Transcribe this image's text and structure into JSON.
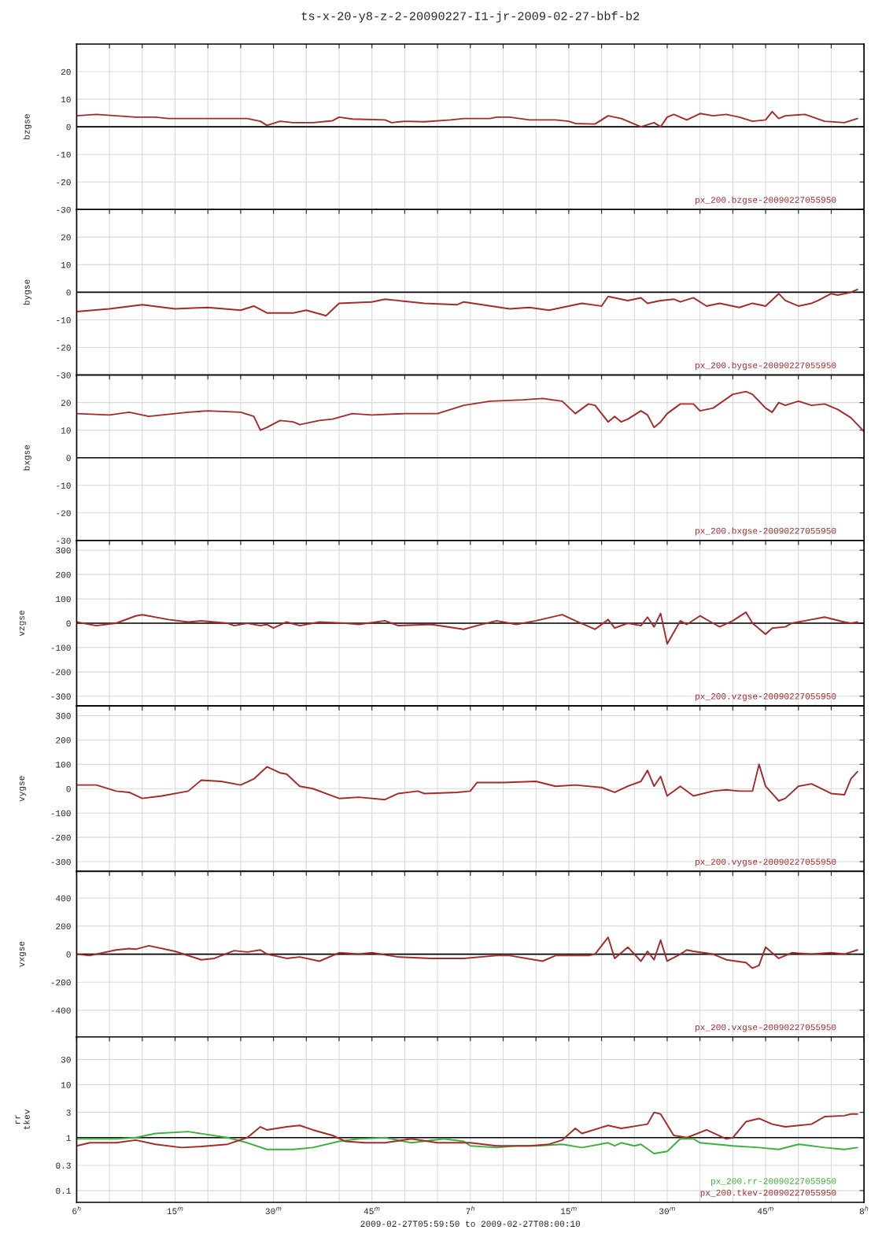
{
  "chart_data": [
    {
      "type": "line",
      "title": "ts-x-20-y8-z-2-20090227-I1-jr-2009-02-27-bbf-b2",
      "ylabel": "bzgse",
      "tick_labels": "y",
      "grid": true,
      "legend": "bottom right",
      "xlim": [
        "2009-02-27T06:00",
        "2009-02-27T08:00"
      ],
      "xticks": [
        {
          "value": "2009-02-27T06:00",
          "label": null
        },
        {
          "value": "2009-02-27T06:05",
          "label": null
        },
        {
          "value": "2009-02-27T06:10",
          "label": null
        },
        {
          "value": "2009-02-27T06:15",
          "label": null
        },
        {
          "value": "2009-02-27T06:20",
          "label": null
        },
        {
          "value": "2009-02-27T06:25",
          "label": null
        },
        {
          "value": "2009-02-27T06:30",
          "label": null
        },
        {
          "value": "2009-02-27T06:35",
          "label": null
        },
        {
          "value": "2009-02-27T06:40",
          "label": null
        },
        {
          "value": "2009-02-27T06:45",
          "label": null
        },
        {
          "value": "2009-02-27T06:50",
          "label": null
        },
        {
          "value": "2009-02-27T06:55",
          "label": null
        },
        {
          "value": "2009-02-27T07:00",
          "label": null
        },
        {
          "value": "2009-02-27T07:05",
          "label": null
        },
        {
          "value": "2009-02-27T07:10",
          "label": null
        },
        {
          "value": "2009-02-27T07:15",
          "label": null
        },
        {
          "value": "2009-02-27T07:20",
          "label": null
        },
        {
          "value": "2009-02-27T07:25",
          "label": null
        },
        {
          "value": "2009-02-27T07:30",
          "label": null
        },
        {
          "value": "2009-02-27T07:35",
          "label": null
        },
        {
          "value": "2009-02-27T07:40",
          "label": null
        },
        {
          "value": "2009-02-27T07:45",
          "label": null
        },
        {
          "value": "2009-02-27T07:50",
          "label": null
        },
        {
          "value": "2009-02-27T07:55",
          "label": null
        },
        {
          "value": "2009-02-27T08:00",
          "label": null
        }
      ],
      "ylim": [
        -30,
        30
      ],
      "yticks": [
        -30,
        -20,
        -10,
        0,
        10,
        20
      ],
      "ref_lines": [
        {
          "axis": "y",
          "value": 0,
          "color": "#000000"
        }
      ],
      "x": [
        "2009-02-27T06:00",
        "2009-02-27T06:03",
        "2009-02-27T06:06",
        "2009-02-27T06:09",
        "2009-02-27T06:12",
        "2009-02-27T06:14",
        "2009-02-27T06:18",
        "2009-02-27T06:23",
        "2009-02-27T06:26",
        "2009-02-27T06:28",
        "2009-02-27T06:29",
        "2009-02-27T06:31",
        "2009-02-27T06:33",
        "2009-02-27T06:36",
        "2009-02-27T06:39",
        "2009-02-27T06:40",
        "2009-02-27T06:42",
        "2009-02-27T06:47",
        "2009-02-27T06:48",
        "2009-02-27T06:50",
        "2009-02-27T06:53",
        "2009-02-27T06:57",
        "2009-02-27T06:59",
        "2009-02-27T07:03",
        "2009-02-27T07:04",
        "2009-02-27T07:06",
        "2009-02-27T07:09",
        "2009-02-27T07:13",
        "2009-02-27T07:15",
        "2009-02-27T07:16",
        "2009-02-27T07:19",
        "2009-02-27T07:21",
        "2009-02-27T07:22",
        "2009-02-27T07:23",
        "2009-02-27T07:25",
        "2009-02-27T07:26",
        "2009-02-27T07:28",
        "2009-02-27T07:29",
        "2009-02-27T07:30",
        "2009-02-27T07:31",
        "2009-02-27T07:33",
        "2009-02-27T07:35",
        "2009-02-27T07:37",
        "2009-02-27T07:39",
        "2009-02-27T07:41",
        "2009-02-27T07:43",
        "2009-02-27T07:45",
        "2009-02-27T07:46",
        "2009-02-27T07:47",
        "2009-02-27T07:48",
        "2009-02-27T07:51",
        "2009-02-27T07:54",
        "2009-02-27T07:57",
        "2009-02-27T07:59"
      ],
      "series": [
        {
          "name": "px_200.bzgse-20090227055950",
          "color": "#a52a2a",
          "values": [
            4,
            4.5,
            4,
            3.5,
            3.5,
            3,
            3,
            3,
            3,
            2,
            0.5,
            2,
            1.5,
            1.5,
            2.2,
            3.5,
            2.8,
            2.5,
            1.5,
            2,
            1.8,
            2.5,
            3,
            3,
            3.5,
            3.5,
            2.5,
            2.5,
            2,
            1.2,
            1,
            4,
            3.5,
            3,
            1,
            0,
            1.5,
            0,
            3.5,
            4.5,
            2.5,
            4.8,
            4,
            4.5,
            3.5,
            2,
            2.5,
            5.5,
            3,
            4,
            4.5,
            2,
            1.5,
            3
          ]
        }
      ]
    },
    {
      "type": "line",
      "ylabel": "bygse",
      "tick_labels": "y",
      "grid": true,
      "legend": "bottom right",
      "xlim": [
        "2009-02-27T06:00",
        "2009-02-27T08:00"
      ],
      "xticks": [
        {
          "value": "2009-02-27T06:00",
          "label": null
        },
        {
          "value": "2009-02-27T06:05",
          "label": null
        },
        {
          "value": "2009-02-27T06:10",
          "label": null
        },
        {
          "value": "2009-02-27T06:15",
          "label": null
        },
        {
          "value": "2009-02-27T06:20",
          "label": null
        },
        {
          "value": "2009-02-27T06:25",
          "label": null
        },
        {
          "value": "2009-02-27T06:30",
          "label": null
        },
        {
          "value": "2009-02-27T06:35",
          "label": null
        },
        {
          "value": "2009-02-27T06:40",
          "label": null
        },
        {
          "value": "2009-02-27T06:45",
          "label": null
        },
        {
          "value": "2009-02-27T06:50",
          "label": null
        },
        {
          "value": "2009-02-27T06:55",
          "label": null
        },
        {
          "value": "2009-02-27T07:00",
          "label": null
        },
        {
          "value": "2009-02-27T07:05",
          "label": null
        },
        {
          "value": "2009-02-27T07:10",
          "label": null
        },
        {
          "value": "2009-02-27T07:15",
          "label": null
        },
        {
          "value": "2009-02-27T07:20",
          "label": null
        },
        {
          "value": "2009-02-27T07:25",
          "label": null
        },
        {
          "value": "2009-02-27T07:30",
          "label": null
        },
        {
          "value": "2009-02-27T07:35",
          "label": null
        },
        {
          "value": "2009-02-27T07:40",
          "label": null
        },
        {
          "value": "2009-02-27T07:45",
          "label": null
        },
        {
          "value": "2009-02-27T07:50",
          "label": null
        },
        {
          "value": "2009-02-27T07:55",
          "label": null
        },
        {
          "value": "2009-02-27T08:00",
          "label": null
        }
      ],
      "ylim": [
        -30,
        30
      ],
      "yticks": [
        -30,
        -20,
        -10,
        0,
        10,
        20
      ],
      "ref_lines": [
        {
          "axis": "y",
          "value": 0,
          "color": "#000000"
        }
      ],
      "x": [
        "2009-02-27T06:00",
        "2009-02-27T06:05",
        "2009-02-27T06:10",
        "2009-02-27T06:15",
        "2009-02-27T06:20",
        "2009-02-27T06:25",
        "2009-02-27T06:27",
        "2009-02-27T06:29",
        "2009-02-27T06:33",
        "2009-02-27T06:35",
        "2009-02-27T06:38",
        "2009-02-27T06:40",
        "2009-02-27T06:45",
        "2009-02-27T06:47",
        "2009-02-27T06:53",
        "2009-02-27T06:58",
        "2009-02-27T06:59",
        "2009-02-27T07:06",
        "2009-02-27T07:09",
        "2009-02-27T07:12",
        "2009-02-27T07:15",
        "2009-02-27T07:17",
        "2009-02-27T07:20",
        "2009-02-27T07:21",
        "2009-02-27T07:22",
        "2009-02-27T07:24",
        "2009-02-27T07:26",
        "2009-02-27T07:27",
        "2009-02-27T07:29",
        "2009-02-27T07:31",
        "2009-02-27T07:32",
        "2009-02-27T07:34",
        "2009-02-27T07:36",
        "2009-02-27T07:38",
        "2009-02-27T07:41",
        "2009-02-27T07:43",
        "2009-02-27T07:45",
        "2009-02-27T07:47",
        "2009-02-27T07:48",
        "2009-02-27T07:50",
        "2009-02-27T07:52",
        "2009-02-27T07:53",
        "2009-02-27T07:55",
        "2009-02-27T07:56",
        "2009-02-27T07:58",
        "2009-02-27T07:59"
      ],
      "series": [
        {
          "name": "px_200.bygse-20090227055950",
          "color": "#a52a2a",
          "values": [
            -7,
            -6,
            -4.5,
            -6,
            -5.5,
            -6.5,
            -5,
            -7.5,
            -7.5,
            -6.5,
            -8.5,
            -4,
            -3.5,
            -2.5,
            -4,
            -4.5,
            -3.5,
            -6,
            -5.5,
            -6.5,
            -5,
            -4,
            -5,
            -1.5,
            -2,
            -3,
            -2,
            -4,
            -3,
            -2.5,
            -3.5,
            -2,
            -5,
            -4,
            -5.5,
            -4,
            -5,
            -0.5,
            -3,
            -5,
            -4,
            -3,
            -0.5,
            -1,
            0,
            1
          ]
        }
      ]
    },
    {
      "type": "line",
      "ylabel": "bxgse",
      "tick_labels": "y",
      "grid": true,
      "legend": "bottom right",
      "xlim": [
        "2009-02-27T06:00",
        "2009-02-27T08:00"
      ],
      "xticks": [
        {
          "value": "2009-02-27T06:00",
          "label": null
        },
        {
          "value": "2009-02-27T06:05",
          "label": null
        },
        {
          "value": "2009-02-27T06:10",
          "label": null
        },
        {
          "value": "2009-02-27T06:15",
          "label": null
        },
        {
          "value": "2009-02-27T06:20",
          "label": null
        },
        {
          "value": "2009-02-27T06:25",
          "label": null
        },
        {
          "value": "2009-02-27T06:30",
          "label": null
        },
        {
          "value": "2009-02-27T06:35",
          "label": null
        },
        {
          "value": "2009-02-27T06:40",
          "label": null
        },
        {
          "value": "2009-02-27T06:45",
          "label": null
        },
        {
          "value": "2009-02-27T06:50",
          "label": null
        },
        {
          "value": "2009-02-27T06:55",
          "label": null
        },
        {
          "value": "2009-02-27T07:00",
          "label": null
        },
        {
          "value": "2009-02-27T07:05",
          "label": null
        },
        {
          "value": "2009-02-27T07:10",
          "label": null
        },
        {
          "value": "2009-02-27T07:15",
          "label": null
        },
        {
          "value": "2009-02-27T07:20",
          "label": null
        },
        {
          "value": "2009-02-27T07:25",
          "label": null
        },
        {
          "value": "2009-02-27T07:30",
          "label": null
        },
        {
          "value": "2009-02-27T07:35",
          "label": null
        },
        {
          "value": "2009-02-27T07:40",
          "label": null
        },
        {
          "value": "2009-02-27T07:45",
          "label": null
        },
        {
          "value": "2009-02-27T07:50",
          "label": null
        },
        {
          "value": "2009-02-27T07:55",
          "label": null
        },
        {
          "value": "2009-02-27T08:00",
          "label": null
        }
      ],
      "ylim": [
        -30,
        30
      ],
      "yticks": [
        -30,
        -20,
        -10,
        0,
        10,
        20
      ],
      "ref_lines": [
        {
          "axis": "y",
          "value": 0,
          "color": "#000000"
        }
      ],
      "x": [
        "2009-02-27T06:00",
        "2009-02-27T06:05",
        "2009-02-27T06:08",
        "2009-02-27T06:11",
        "2009-02-27T06:13",
        "2009-02-27T06:17",
        "2009-02-27T06:20",
        "2009-02-27T06:25",
        "2009-02-27T06:27",
        "2009-02-27T06:28",
        "2009-02-27T06:29",
        "2009-02-27T06:31",
        "2009-02-27T06:33",
        "2009-02-27T06:34",
        "2009-02-27T06:37",
        "2009-02-27T06:39",
        "2009-02-27T06:42",
        "2009-02-27T06:45",
        "2009-02-27T06:50",
        "2009-02-27T06:55",
        "2009-02-27T06:59",
        "2009-02-27T07:03",
        "2009-02-27T07:08",
        "2009-02-27T07:11",
        "2009-02-27T07:14",
        "2009-02-27T07:16",
        "2009-02-27T07:18",
        "2009-02-27T07:19",
        "2009-02-27T07:21",
        "2009-02-27T07:22",
        "2009-02-27T07:23",
        "2009-02-27T07:24",
        "2009-02-27T07:26",
        "2009-02-27T07:27",
        "2009-02-27T07:28",
        "2009-02-27T07:29",
        "2009-02-27T07:30",
        "2009-02-27T07:32",
        "2009-02-27T07:34",
        "2009-02-27T07:35",
        "2009-02-27T07:37",
        "2009-02-27T07:40",
        "2009-02-27T07:42",
        "2009-02-27T07:43",
        "2009-02-27T07:45",
        "2009-02-27T07:46",
        "2009-02-27T07:47",
        "2009-02-27T07:48",
        "2009-02-27T07:50",
        "2009-02-27T07:52",
        "2009-02-27T07:54",
        "2009-02-27T07:56",
        "2009-02-27T07:58",
        "2009-02-27T07:59",
        "2009-02-27T08:00"
      ],
      "series": [
        {
          "name": "px_200.bxgse-20090227055950",
          "color": "#a52a2a",
          "values": [
            16,
            15.5,
            16.5,
            15,
            15.5,
            16.5,
            17,
            16.5,
            15,
            10,
            11,
            13.5,
            13,
            12,
            13.5,
            14,
            16,
            15.5,
            16,
            16,
            19,
            20.5,
            21,
            21.5,
            20.5,
            16,
            19.5,
            19,
            13,
            15,
            13,
            14,
            17,
            15.5,
            11,
            13,
            16,
            19.5,
            19.5,
            17,
            18,
            23,
            24,
            23,
            18,
            16.5,
            20,
            19,
            20.5,
            19,
            19.5,
            17.5,
            14.5,
            12,
            9.5
          ]
        }
      ]
    },
    {
      "type": "line",
      "ylabel": "vzgse",
      "tick_labels": "y",
      "grid": true,
      "legend": "bottom right",
      "xlim": [
        "2009-02-27T06:00",
        "2009-02-27T08:00"
      ],
      "xticks": [
        {
          "value": "2009-02-27T06:00",
          "label": null
        },
        {
          "value": "2009-02-27T06:05",
          "label": null
        },
        {
          "value": "2009-02-27T06:10",
          "label": null
        },
        {
          "value": "2009-02-27T06:15",
          "label": null
        },
        {
          "value": "2009-02-27T06:20",
          "label": null
        },
        {
          "value": "2009-02-27T06:25",
          "label": null
        },
        {
          "value": "2009-02-27T06:30",
          "label": null
        },
        {
          "value": "2009-02-27T06:35",
          "label": null
        },
        {
          "value": "2009-02-27T06:40",
          "label": null
        },
        {
          "value": "2009-02-27T06:45",
          "label": null
        },
        {
          "value": "2009-02-27T06:50",
          "label": null
        },
        {
          "value": "2009-02-27T06:55",
          "label": null
        },
        {
          "value": "2009-02-27T07:00",
          "label": null
        },
        {
          "value": "2009-02-27T07:05",
          "label": null
        },
        {
          "value": "2009-02-27T07:10",
          "label": null
        },
        {
          "value": "2009-02-27T07:15",
          "label": null
        },
        {
          "value": "2009-02-27T07:20",
          "label": null
        },
        {
          "value": "2009-02-27T07:25",
          "label": null
        },
        {
          "value": "2009-02-27T07:30",
          "label": null
        },
        {
          "value": "2009-02-27T07:35",
          "label": null
        },
        {
          "value": "2009-02-27T07:40",
          "label": null
        },
        {
          "value": "2009-02-27T07:45",
          "label": null
        },
        {
          "value": "2009-02-27T07:50",
          "label": null
        },
        {
          "value": "2009-02-27T07:55",
          "label": null
        },
        {
          "value": "2009-02-27T08:00",
          "label": null
        }
      ],
      "ylim": [
        -340,
        340
      ],
      "yticks": [
        -300,
        -200,
        -100,
        0,
        100,
        200,
        300
      ],
      "ref_lines": [
        {
          "axis": "y",
          "value": 0,
          "color": "#000000"
        }
      ],
      "x": [
        "2009-02-27T06:00",
        "2009-02-27T06:03",
        "2009-02-27T06:06",
        "2009-02-27T06:09",
        "2009-02-27T06:10",
        "2009-02-27T06:14",
        "2009-02-27T06:17",
        "2009-02-27T06:19",
        "2009-02-27T06:23",
        "2009-02-27T06:24",
        "2009-02-27T06:26",
        "2009-02-27T06:28",
        "2009-02-27T06:29",
        "2009-02-27T06:30",
        "2009-02-27T06:32",
        "2009-02-27T06:34",
        "2009-02-27T06:37",
        "2009-02-27T06:41",
        "2009-02-27T06:43",
        "2009-02-27T06:47",
        "2009-02-27T06:49",
        "2009-02-27T06:54",
        "2009-02-27T06:59",
        "2009-02-27T07:01",
        "2009-02-27T07:04",
        "2009-02-27T07:07",
        "2009-02-27T07:10",
        "2009-02-27T07:14",
        "2009-02-27T07:16",
        "2009-02-27T07:19",
        "2009-02-27T07:21",
        "2009-02-27T07:22",
        "2009-02-27T07:24",
        "2009-02-27T07:26",
        "2009-02-27T07:27",
        "2009-02-27T07:28",
        "2009-02-27T07:29",
        "2009-02-27T07:30",
        "2009-02-27T07:32",
        "2009-02-27T07:33",
        "2009-02-27T07:35",
        "2009-02-27T07:37",
        "2009-02-27T07:38",
        "2009-02-27T07:40",
        "2009-02-27T07:42",
        "2009-02-27T07:43",
        "2009-02-27T07:45",
        "2009-02-27T07:46",
        "2009-02-27T07:48",
        "2009-02-27T07:49",
        "2009-02-27T07:51",
        "2009-02-27T07:54",
        "2009-02-27T07:57",
        "2009-02-27T07:58",
        "2009-02-27T07:59"
      ],
      "series": [
        {
          "name": "px_200.vzgse-20090227055950",
          "color": "#a52a2a",
          "values": [
            5,
            -10,
            0,
            30,
            35,
            15,
            5,
            10,
            0,
            -10,
            0,
            -10,
            -5,
            -20,
            5,
            -10,
            5,
            0,
            -5,
            10,
            -10,
            -5,
            -25,
            -10,
            10,
            -5,
            10,
            35,
            10,
            -25,
            15,
            -20,
            0,
            -10,
            25,
            -15,
            40,
            -85,
            10,
            -5,
            30,
            0,
            -15,
            10,
            45,
            0,
            -45,
            -20,
            -15,
            0,
            10,
            25,
            5,
            0,
            5
          ]
        }
      ]
    },
    {
      "type": "line",
      "ylabel": "vygse",
      "tick_labels": "y",
      "grid": true,
      "legend": "bottom right",
      "xlim": [
        "2009-02-27T06:00",
        "2009-02-27T08:00"
      ],
      "xticks": [
        {
          "value": "2009-02-27T06:00",
          "label": null
        },
        {
          "value": "2009-02-27T06:05",
          "label": null
        },
        {
          "value": "2009-02-27T06:10",
          "label": null
        },
        {
          "value": "2009-02-27T06:15",
          "label": null
        },
        {
          "value": "2009-02-27T06:20",
          "label": null
        },
        {
          "value": "2009-02-27T06:25",
          "label": null
        },
        {
          "value": "2009-02-27T06:30",
          "label": null
        },
        {
          "value": "2009-02-27T06:35",
          "label": null
        },
        {
          "value": "2009-02-27T06:40",
          "label": null
        },
        {
          "value": "2009-02-27T06:45",
          "label": null
        },
        {
          "value": "2009-02-27T06:50",
          "label": null
        },
        {
          "value": "2009-02-27T06:55",
          "label": null
        },
        {
          "value": "2009-02-27T07:00",
          "label": null
        },
        {
          "value": "2009-02-27T07:05",
          "label": null
        },
        {
          "value": "2009-02-27T07:10",
          "label": null
        },
        {
          "value": "2009-02-27T07:15",
          "label": null
        },
        {
          "value": "2009-02-27T07:20",
          "label": null
        },
        {
          "value": "2009-02-27T07:25",
          "label": null
        },
        {
          "value": "2009-02-27T07:30",
          "label": null
        },
        {
          "value": "2009-02-27T07:35",
          "label": null
        },
        {
          "value": "2009-02-27T07:40",
          "label": null
        },
        {
          "value": "2009-02-27T07:45",
          "label": null
        },
        {
          "value": "2009-02-27T07:50",
          "label": null
        },
        {
          "value": "2009-02-27T07:55",
          "label": null
        },
        {
          "value": "2009-02-27T08:00",
          "label": null
        }
      ],
      "ylim": [
        -340,
        340
      ],
      "yticks": [
        -300,
        -200,
        -100,
        0,
        100,
        200,
        300
      ],
      "x": [
        "2009-02-27T06:00",
        "2009-02-27T06:03",
        "2009-02-27T06:06",
        "2009-02-27T06:08",
        "2009-02-27T06:10",
        "2009-02-27T06:13",
        "2009-02-27T06:17",
        "2009-02-27T06:19",
        "2009-02-27T06:22",
        "2009-02-27T06:25",
        "2009-02-27T06:27",
        "2009-02-27T06:29",
        "2009-02-27T06:31",
        "2009-02-27T06:32",
        "2009-02-27T06:34",
        "2009-02-27T06:36",
        "2009-02-27T06:40",
        "2009-02-27T06:43",
        "2009-02-27T06:47",
        "2009-02-27T06:49",
        "2009-02-27T06:52",
        "2009-02-27T06:53",
        "2009-02-27T06:58",
        "2009-02-27T07:00",
        "2009-02-27T07:01",
        "2009-02-27T07:05",
        "2009-02-27T07:10",
        "2009-02-27T07:13",
        "2009-02-27T07:16",
        "2009-02-27T07:20",
        "2009-02-27T07:22",
        "2009-02-27T07:24",
        "2009-02-27T07:26",
        "2009-02-27T07:27",
        "2009-02-27T07:28",
        "2009-02-27T07:29",
        "2009-02-27T07:30",
        "2009-02-27T07:32",
        "2009-02-27T07:34",
        "2009-02-27T07:37",
        "2009-02-27T07:39",
        "2009-02-27T07:41",
        "2009-02-27T07:43",
        "2009-02-27T07:44",
        "2009-02-27T07:45",
        "2009-02-27T07:47",
        "2009-02-27T07:48",
        "2009-02-27T07:50",
        "2009-02-27T07:52",
        "2009-02-27T07:55",
        "2009-02-27T07:57",
        "2009-02-27T07:58",
        "2009-02-27T07:59"
      ],
      "series": [
        {
          "name": "px_200.vygse-20090227055950",
          "color": "#a52a2a",
          "values": [
            15,
            15,
            -10,
            -15,
            -40,
            -30,
            -10,
            35,
            30,
            15,
            40,
            90,
            65,
            60,
            10,
            0,
            -40,
            -35,
            -45,
            -20,
            -10,
            -20,
            -15,
            -10,
            25,
            25,
            30,
            10,
            15,
            5,
            -15,
            10,
            30,
            75,
            10,
            50,
            -30,
            10,
            -30,
            -10,
            -5,
            -10,
            -10,
            100,
            10,
            -50,
            -40,
            10,
            20,
            -20,
            -25,
            40,
            70
          ]
        }
      ]
    },
    {
      "type": "line",
      "ylabel": "vxgse",
      "tick_labels": "y",
      "grid": true,
      "legend": "bottom right",
      "xlim": [
        "2009-02-27T06:00",
        "2009-02-27T08:00"
      ],
      "xticks": [
        {
          "value": "2009-02-27T06:00",
          "label": null
        },
        {
          "value": "2009-02-27T06:05",
          "label": null
        },
        {
          "value": "2009-02-27T06:10",
          "label": null
        },
        {
          "value": "2009-02-27T06:15",
          "label": null
        },
        {
          "value": "2009-02-27T06:20",
          "label": null
        },
        {
          "value": "2009-02-27T06:25",
          "label": null
        },
        {
          "value": "2009-02-27T06:30",
          "label": null
        },
        {
          "value": "2009-02-27T06:35",
          "label": null
        },
        {
          "value": "2009-02-27T06:40",
          "label": null
        },
        {
          "value": "2009-02-27T06:45",
          "label": null
        },
        {
          "value": "2009-02-27T06:50",
          "label": null
        },
        {
          "value": "2009-02-27T06:55",
          "label": null
        },
        {
          "value": "2009-02-27T07:00",
          "label": null
        },
        {
          "value": "2009-02-27T07:05",
          "label": null
        },
        {
          "value": "2009-02-27T07:10",
          "label": null
        },
        {
          "value": "2009-02-27T07:15",
          "label": null
        },
        {
          "value": "2009-02-27T07:20",
          "label": null
        },
        {
          "value": "2009-02-27T07:25",
          "label": null
        },
        {
          "value": "2009-02-27T07:30",
          "label": null
        },
        {
          "value": "2009-02-27T07:35",
          "label": null
        },
        {
          "value": "2009-02-27T07:40",
          "label": null
        },
        {
          "value": "2009-02-27T07:45",
          "label": null
        },
        {
          "value": "2009-02-27T07:50",
          "label": null
        },
        {
          "value": "2009-02-27T07:55",
          "label": null
        },
        {
          "value": "2009-02-27T08:00",
          "label": null
        }
      ],
      "ylim": [
        -590,
        590
      ],
      "yticks": [
        -400,
        -200,
        0,
        200,
        400
      ],
      "ref_lines": [
        {
          "axis": "y",
          "value": 0,
          "color": "#000000"
        }
      ],
      "x": [
        "2009-02-27T06:00",
        "2009-02-27T06:02",
        "2009-02-27T06:06",
        "2009-02-27T06:08",
        "2009-02-27T06:09",
        "2009-02-27T06:11",
        "2009-02-27T06:15",
        "2009-02-27T06:19",
        "2009-02-27T06:21",
        "2009-02-27T06:24",
        "2009-02-27T06:26",
        "2009-02-27T06:28",
        "2009-02-27T06:29",
        "2009-02-27T06:32",
        "2009-02-27T06:34",
        "2009-02-27T06:37",
        "2009-02-27T06:40",
        "2009-02-27T06:43",
        "2009-02-27T06:45",
        "2009-02-27T06:49",
        "2009-02-27T06:54",
        "2009-02-27T06:59",
        "2009-02-27T07:04",
        "2009-02-27T07:06",
        "2009-02-27T07:11",
        "2009-02-27T07:13",
        "2009-02-27T07:18",
        "2009-02-27T07:19",
        "2009-02-27T07:21",
        "2009-02-27T07:22",
        "2009-02-27T07:24",
        "2009-02-27T07:26",
        "2009-02-27T07:27",
        "2009-02-27T07:28",
        "2009-02-27T07:29",
        "2009-02-27T07:30",
        "2009-02-27T07:32",
        "2009-02-27T07:33",
        "2009-02-27T07:34",
        "2009-02-27T07:37",
        "2009-02-27T07:39",
        "2009-02-27T07:42",
        "2009-02-27T07:43",
        "2009-02-27T07:44",
        "2009-02-27T07:45",
        "2009-02-27T07:47",
        "2009-02-27T07:49",
        "2009-02-27T07:52",
        "2009-02-27T07:55",
        "2009-02-27T07:57",
        "2009-02-27T07:59"
      ],
      "series": [
        {
          "name": "px_200.vxgse-20090227055950",
          "color": "#a52a2a",
          "values": [
            0,
            -10,
            30,
            40,
            35,
            60,
            20,
            -40,
            -30,
            25,
            15,
            30,
            0,
            -30,
            -20,
            -50,
            10,
            0,
            10,
            -20,
            -30,
            -30,
            -10,
            -10,
            -50,
            -10,
            -10,
            0,
            120,
            -30,
            50,
            -50,
            20,
            -40,
            100,
            -50,
            0,
            30,
            20,
            0,
            -40,
            -60,
            -100,
            -80,
            50,
            -30,
            10,
            0,
            10,
            0,
            30
          ]
        }
      ]
    },
    {
      "type": "line",
      "ylabel": "rr\ntkev",
      "xlabel": "2009-02-27T05:59:50 to 2009-02-27T08:00:10",
      "grid": true,
      "legend": "bottom right",
      "log": "y",
      "xlim": [
        "2009-02-27T06:00",
        "2009-02-27T08:00"
      ],
      "xticks": [
        {
          "value": "2009-02-27T06:00",
          "label": "6$^{h}$"
        },
        {
          "value": "2009-02-27T06:05",
          "label": null
        },
        {
          "value": "2009-02-27T06:10",
          "label": null
        },
        {
          "value": "2009-02-27T06:15",
          "label": "15$^{m}$"
        },
        {
          "value": "2009-02-27T06:20",
          "label": null
        },
        {
          "value": "2009-02-27T06:25",
          "label": null
        },
        {
          "value": "2009-02-27T06:30",
          "label": "30$^{m}$"
        },
        {
          "value": "2009-02-27T06:35",
          "label": null
        },
        {
          "value": "2009-02-27T06:40",
          "label": null
        },
        {
          "value": "2009-02-27T06:45",
          "label": "45$^{m}$"
        },
        {
          "value": "2009-02-27T06:50",
          "label": null
        },
        {
          "value": "2009-02-27T06:55",
          "label": null
        },
        {
          "value": "2009-02-27T07:00",
          "label": "7$^{h}$"
        },
        {
          "value": "2009-02-27T07:05",
          "label": null
        },
        {
          "value": "2009-02-27T07:10",
          "label": null
        },
        {
          "value": "2009-02-27T07:15",
          "label": "15$^{m}$"
        },
        {
          "value": "2009-02-27T07:20",
          "label": null
        },
        {
          "value": "2009-02-27T07:25",
          "label": null
        },
        {
          "value": "2009-02-27T07:30",
          "label": "30$^{m}$"
        },
        {
          "value": "2009-02-27T07:35",
          "label": null
        },
        {
          "value": "2009-02-27T07:40",
          "label": null
        },
        {
          "value": "2009-02-27T07:45",
          "label": "45$^{m}$"
        },
        {
          "value": "2009-02-27T07:50",
          "label": null
        },
        {
          "value": "2009-02-27T07:55",
          "label": null
        },
        {
          "value": "2009-02-27T08:00",
          "label": "8$^{h}$"
        }
      ],
      "ylim": [
        0.06,
        80
      ],
      "yticks": [
        0.1,
        0.3,
        1,
        3,
        10,
        30
      ],
      "ref_lines": [
        {
          "axis": "y",
          "value": 1,
          "color": "#000000"
        }
      ],
      "series": [
        {
          "name": "px_200.rr-20090227055950",
          "color": "#3cb03c",
          "x": [
            "2009-02-27T06:00",
            "2009-02-27T06:06",
            "2009-02-27T06:09",
            "2009-02-27T06:12",
            "2009-02-27T06:17",
            "2009-02-27T06:23",
            "2009-02-27T06:26",
            "2009-02-27T06:29",
            "2009-02-27T06:33",
            "2009-02-27T06:36",
            "2009-02-27T06:40",
            "2009-02-27T06:43",
            "2009-02-27T06:47",
            "2009-02-27T06:51",
            "2009-02-27T06:56",
            "2009-02-27T06:59",
            "2009-02-27T07:00",
            "2009-02-27T07:04",
            "2009-02-27T07:07",
            "2009-02-27T07:10",
            "2009-02-27T07:14",
            "2009-02-27T07:17",
            "2009-02-27T07:21",
            "2009-02-27T07:22",
            "2009-02-27T07:23",
            "2009-02-27T07:25",
            "2009-02-27T07:26",
            "2009-02-27T07:28",
            "2009-02-27T07:30",
            "2009-02-27T07:32",
            "2009-02-27T07:34",
            "2009-02-27T07:35",
            "2009-02-27T07:40",
            "2009-02-27T07:44",
            "2009-02-27T07:47",
            "2009-02-27T07:50",
            "2009-02-27T07:54",
            "2009-02-27T07:57",
            "2009-02-27T07:59"
          ],
          "values": [
            0.95,
            0.95,
            1.0,
            1.2,
            1.3,
            1.0,
            0.8,
            0.6,
            0.6,
            0.65,
            0.85,
            0.95,
            1.0,
            0.8,
            0.95,
            0.85,
            0.7,
            0.65,
            0.7,
            0.7,
            0.75,
            0.65,
            0.8,
            0.7,
            0.8,
            0.7,
            0.75,
            0.5,
            0.55,
            0.95,
            0.95,
            0.8,
            0.7,
            0.65,
            0.6,
            0.75,
            0.65,
            0.6,
            0.65
          ]
        },
        {
          "name": "px_200.tkev-20090227055950",
          "color": "#a52a2a",
          "x": [
            "2009-02-27T06:00",
            "2009-02-27T06:02",
            "2009-02-27T06:06",
            "2009-02-27T06:09",
            "2009-02-27T06:12",
            "2009-02-27T06:16",
            "2009-02-27T06:19",
            "2009-02-27T06:23",
            "2009-02-27T06:26",
            "2009-02-27T06:28",
            "2009-02-27T06:29",
            "2009-02-27T06:32",
            "2009-02-27T06:34",
            "2009-02-27T06:36",
            "2009-02-27T06:39",
            "2009-02-27T06:41",
            "2009-02-27T06:44",
            "2009-02-27T06:47",
            "2009-02-27T06:51",
            "2009-02-27T06:55",
            "2009-02-27T07:00",
            "2009-02-27T07:04",
            "2009-02-27T07:09",
            "2009-02-27T07:12",
            "2009-02-27T07:14",
            "2009-02-27T07:16",
            "2009-02-27T07:17",
            "2009-02-27T07:21",
            "2009-02-27T07:23",
            "2009-02-27T07:27",
            "2009-02-27T07:28",
            "2009-02-27T07:29",
            "2009-02-27T07:31",
            "2009-02-27T07:33",
            "2009-02-27T07:36",
            "2009-02-27T07:39",
            "2009-02-27T07:40",
            "2009-02-27T07:42",
            "2009-02-27T07:44",
            "2009-02-27T07:46",
            "2009-02-27T07:48",
            "2009-02-27T07:52",
            "2009-02-27T07:54",
            "2009-02-27T07:57",
            "2009-02-27T07:58",
            "2009-02-27T07:59"
          ],
          "values": [
            0.7,
            0.8,
            0.8,
            0.9,
            0.75,
            0.65,
            0.68,
            0.75,
            1.0,
            1.6,
            1.4,
            1.6,
            1.7,
            1.4,
            1.1,
            0.85,
            0.8,
            0.8,
            0.95,
            0.8,
            0.8,
            0.7,
            0.7,
            0.75,
            0.9,
            1.5,
            1.2,
            1.7,
            1.5,
            1.8,
            3.0,
            2.8,
            1.1,
            1.0,
            1.4,
            0.95,
            1.0,
            2.0,
            2.3,
            1.8,
            1.6,
            1.8,
            2.5,
            2.6,
            2.8,
            2.8
          ]
        }
      ]
    }
  ]
}
